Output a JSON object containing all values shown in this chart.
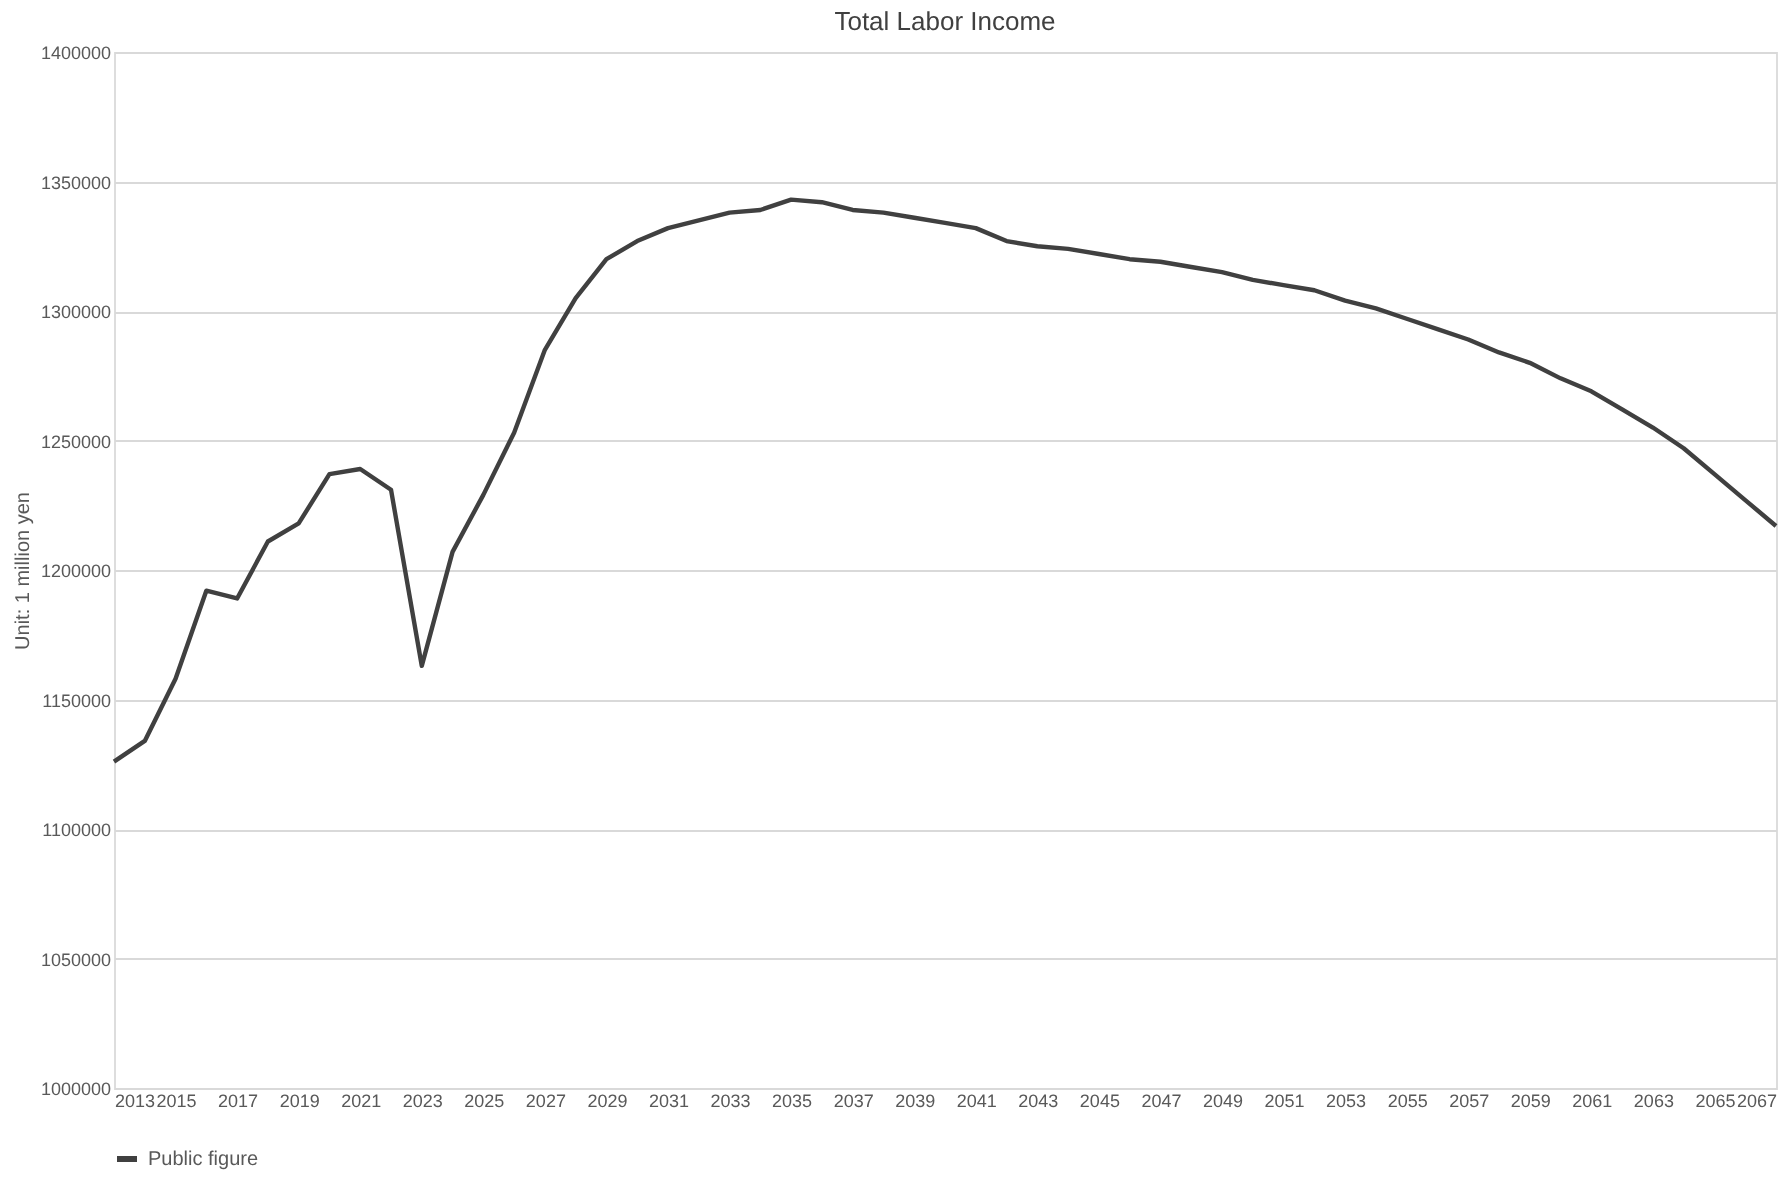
{
  "chart_data": {
    "type": "line",
    "title": "Total Labor Income",
    "ylabel": "Unit: 1 million yen",
    "x": [
      2013,
      2014,
      2015,
      2016,
      2017,
      2018,
      2019,
      2020,
      2021,
      2022,
      2023,
      2024,
      2025,
      2026,
      2027,
      2028,
      2029,
      2030,
      2031,
      2032,
      2033,
      2034,
      2035,
      2036,
      2037,
      2038,
      2039,
      2040,
      2041,
      2042,
      2043,
      2044,
      2045,
      2046,
      2047,
      2048,
      2049,
      2050,
      2051,
      2052,
      2053,
      2054,
      2055,
      2056,
      2057,
      2058,
      2059,
      2060,
      2061,
      2062,
      2063,
      2064,
      2065,
      2066,
      2067
    ],
    "series": [
      {
        "name": "Public figure",
        "color": "#404040",
        "values": [
          1126000,
          1134000,
          1158000,
          1192000,
          1189000,
          1211000,
          1218000,
          1237000,
          1239000,
          1231000,
          1163000,
          1207000,
          1229000,
          1253000,
          1285000,
          1305000,
          1320000,
          1327000,
          1332000,
          1335000,
          1338000,
          1339000,
          1343000,
          1342000,
          1339000,
          1338000,
          1336000,
          1334000,
          1332000,
          1327000,
          1325000,
          1324000,
          1322000,
          1320000,
          1319000,
          1317000,
          1315000,
          1312000,
          1310000,
          1308000,
          1304000,
          1301000,
          1297000,
          1293000,
          1289000,
          1284000,
          1280000,
          1274000,
          1269000,
          1262000,
          1255000,
          1247000,
          1237000,
          1227000,
          1217000
        ]
      }
    ],
    "xlim": [
      2013,
      2067
    ],
    "xticks": [
      2013,
      2015,
      2017,
      2019,
      2021,
      2023,
      2025,
      2027,
      2029,
      2031,
      2033,
      2035,
      2037,
      2039,
      2041,
      2043,
      2045,
      2047,
      2049,
      2051,
      2053,
      2055,
      2057,
      2059,
      2061,
      2063,
      2065,
      2067
    ],
    "ylim": [
      1000000,
      1400000
    ],
    "yticks": [
      1000000,
      1050000,
      1100000,
      1150000,
      1200000,
      1250000,
      1300000,
      1350000,
      1400000
    ],
    "grid": "y",
    "legend": "bottom",
    "marker": "none",
    "line_style": "solid"
  }
}
